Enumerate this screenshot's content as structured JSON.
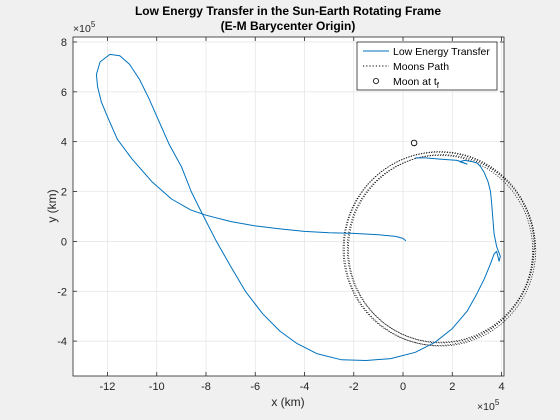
{
  "chart_data": {
    "type": "line",
    "title": "Low Energy Transfer in the Sun-Earth Rotating Frame",
    "subtitle": "(E-M Barycenter Origin)",
    "xlabel": "x (km)",
    "ylabel": "y (km)",
    "x_multiplier": "×10",
    "y_multiplier": "×10",
    "multiplier_exponent": "5",
    "xlim": [
      -13.4,
      4.1
    ],
    "ylim": [
      -5.4,
      8.2
    ],
    "x_ticks": [
      -12,
      -10,
      -8,
      -6,
      -4,
      -2,
      0,
      2,
      4
    ],
    "y_ticks": [
      -4,
      -2,
      0,
      2,
      4,
      6,
      8
    ],
    "x_tick_labels": [
      "-12",
      "-10",
      "-8",
      "-6",
      "-4",
      "-2",
      "0",
      "2",
      "4"
    ],
    "y_tick_labels": [
      "-4",
      "-2",
      "0",
      "2",
      "4",
      "6",
      "8"
    ],
    "grid": true,
    "legend_position": "top-right",
    "units_note": "values in units of 1e5 km",
    "series": [
      {
        "name": "Low Energy Transfer",
        "style": "solid",
        "color": "#0072BD",
        "x": [
          0.12,
          0.0,
          -0.3,
          -1.0,
          -2.0,
          -3.0,
          -4.0,
          -5.0,
          -6.0,
          -7.0,
          -8.0,
          -8.6,
          -9.4,
          -10.2,
          -11.0,
          -11.6,
          -12.0,
          -12.25,
          -12.4,
          -12.45,
          -12.3,
          -11.9,
          -11.5,
          -11.1,
          -10.7,
          -10.3,
          -9.9,
          -9.5,
          -9.0,
          -8.6,
          -8.2,
          -7.6,
          -7.0,
          -6.4,
          -5.7,
          -5.0,
          -4.3,
          -3.5,
          -2.5,
          -1.5,
          -0.5,
          0.5,
          1.3,
          2.0,
          2.6,
          3.0,
          3.3,
          3.55,
          3.7,
          3.8,
          3.9,
          3.95,
          3.8,
          3.7,
          3.65,
          3.6,
          3.55,
          3.45,
          3.3,
          3.15,
          3.0,
          2.8,
          2.5,
          2.3,
          2.6,
          2.2,
          1.5,
          0.9,
          0.5
        ],
        "y": [
          0.02,
          0.12,
          0.2,
          0.27,
          0.32,
          0.35,
          0.4,
          0.5,
          0.62,
          0.8,
          1.05,
          1.25,
          1.7,
          2.4,
          3.3,
          4.1,
          5.0,
          5.6,
          6.2,
          6.7,
          7.2,
          7.5,
          7.45,
          7.1,
          6.5,
          5.7,
          4.8,
          3.9,
          3.0,
          2.0,
          1.2,
          0.05,
          -1.0,
          -2.0,
          -2.9,
          -3.6,
          -4.1,
          -4.5,
          -4.75,
          -4.78,
          -4.7,
          -4.45,
          -4.05,
          -3.5,
          -2.8,
          -2.1,
          -1.5,
          -0.9,
          -0.5,
          -0.4,
          -0.8,
          -0.6,
          -0.2,
          0.3,
          0.9,
          1.5,
          2.0,
          2.4,
          2.75,
          3.0,
          3.15,
          3.2,
          3.25,
          3.2,
          3.1,
          3.25,
          3.3,
          3.35,
          3.35
        ]
      },
      {
        "name": "Moons Path",
        "style": "dotted",
        "color": "#000000",
        "center": [
          1.5,
          -0.3
        ],
        "radius": 3.85,
        "loops": 4,
        "radius_drift": 0.08
      },
      {
        "name": "Moon at t",
        "name_subscript": "f",
        "style": "marker-circle",
        "color": "#000000",
        "x": [
          0.45
        ],
        "y": [
          3.95
        ]
      }
    ]
  }
}
